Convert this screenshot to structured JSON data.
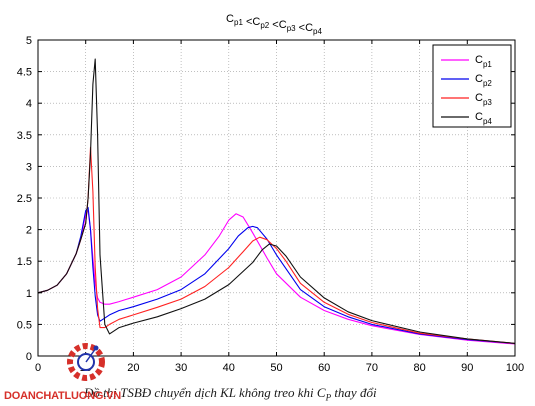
{
  "title": {
    "c_letter": "C",
    "lt": " <",
    "subs": [
      "p1",
      "p2",
      "p3",
      "p4"
    ]
  },
  "caption": {
    "prefix": "Đồ thị TSBĐ chuyển dịch KL không treo khi C",
    "sub": "P",
    "suffix": " thay đổi"
  },
  "watermark": "DOANCHATLUONG.VN",
  "chart_data": {
    "type": "line",
    "title": "Cp1 <Cp2 <Cp3 <Cp4",
    "xlim": [
      0,
      100
    ],
    "ylim": [
      0,
      5
    ],
    "xticks": [
      0,
      10,
      20,
      30,
      40,
      50,
      60,
      70,
      80,
      90,
      100
    ],
    "yticks": [
      0,
      0.5,
      1,
      1.5,
      2,
      2.5,
      3,
      3.5,
      4,
      4.5,
      5
    ],
    "ytick_labels": [
      "0",
      "0.5",
      "1",
      "1.5",
      "2",
      "2.5",
      "3",
      "3.5",
      "4",
      "4.5",
      "5"
    ],
    "grid": true,
    "legend_position": "top-right",
    "series": [
      {
        "name": "Cp1",
        "sub": "p1",
        "color": "#ff00ff",
        "x": [
          0,
          2,
          4,
          6,
          8,
          9,
          10,
          10.5,
          11,
          11.5,
          12,
          12.5,
          13,
          14,
          15,
          17,
          20,
          25,
          30,
          35,
          38,
          40,
          41.5,
          43,
          45,
          48,
          50,
          55,
          60,
          65,
          70,
          80,
          90,
          100
        ],
        "y": [
          1.0,
          1.04,
          1.12,
          1.3,
          1.62,
          1.85,
          2.25,
          2.3,
          2.0,
          1.55,
          1.15,
          0.92,
          0.85,
          0.82,
          0.82,
          0.86,
          0.93,
          1.05,
          1.25,
          1.6,
          1.9,
          2.15,
          2.25,
          2.2,
          1.95,
          1.55,
          1.3,
          0.93,
          0.72,
          0.58,
          0.48,
          0.34,
          0.25,
          0.19
        ]
      },
      {
        "name": "Cp2",
        "sub": "p2",
        "color": "#0000ee",
        "x": [
          0,
          2,
          4,
          6,
          8,
          9,
          10,
          10.5,
          11,
          11.5,
          12,
          12.5,
          13,
          14,
          15,
          17,
          20,
          25,
          30,
          35,
          40,
          42,
          44,
          45,
          46,
          48,
          50,
          55,
          60,
          65,
          70,
          80,
          90,
          100
        ],
        "y": [
          1.0,
          1.04,
          1.12,
          1.3,
          1.62,
          1.9,
          2.3,
          2.35,
          2.0,
          1.4,
          0.95,
          0.65,
          0.55,
          0.6,
          0.65,
          0.72,
          0.78,
          0.9,
          1.05,
          1.3,
          1.7,
          1.9,
          2.03,
          2.05,
          2.03,
          1.85,
          1.6,
          1.05,
          0.78,
          0.62,
          0.5,
          0.35,
          0.26,
          0.2
        ]
      },
      {
        "name": "Cp3",
        "sub": "p3",
        "color": "#ff2222",
        "x": [
          0,
          2,
          4,
          6,
          8,
          9,
          10,
          10.5,
          11,
          11.5,
          12,
          12.5,
          13,
          14,
          15,
          17,
          20,
          25,
          30,
          35,
          40,
          43,
          45,
          46.5,
          48,
          50,
          52,
          55,
          60,
          65,
          70,
          80,
          90,
          100
        ],
        "y": [
          1.0,
          1.04,
          1.12,
          1.3,
          1.62,
          1.85,
          2.1,
          2.5,
          3.3,
          2.6,
          1.4,
          0.75,
          0.45,
          0.45,
          0.5,
          0.58,
          0.65,
          0.77,
          0.9,
          1.1,
          1.4,
          1.65,
          1.82,
          1.88,
          1.84,
          1.7,
          1.5,
          1.15,
          0.85,
          0.66,
          0.53,
          0.36,
          0.27,
          0.2
        ]
      },
      {
        "name": "Cp4",
        "sub": "p4",
        "color": "#111111",
        "x": [
          0,
          2,
          4,
          6,
          8,
          9,
          10,
          10.5,
          11,
          11.5,
          12,
          12.5,
          13,
          14,
          15,
          17,
          20,
          25,
          30,
          35,
          40,
          45,
          47,
          48.5,
          50,
          52,
          55,
          60,
          65,
          70,
          80,
          90,
          100
        ],
        "y": [
          1.0,
          1.04,
          1.12,
          1.3,
          1.62,
          1.85,
          2.1,
          2.5,
          3.2,
          4.3,
          4.7,
          3.5,
          1.6,
          0.5,
          0.35,
          0.45,
          0.52,
          0.62,
          0.75,
          0.9,
          1.13,
          1.48,
          1.68,
          1.77,
          1.74,
          1.58,
          1.25,
          0.92,
          0.7,
          0.56,
          0.38,
          0.27,
          0.2
        ]
      }
    ]
  }
}
